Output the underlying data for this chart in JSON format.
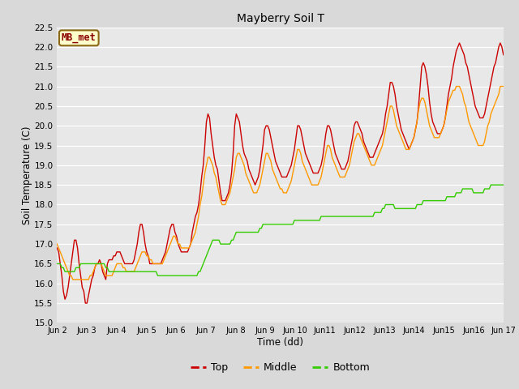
{
  "title": "Mayberry Soil T",
  "xlabel": "Time (dd)",
  "ylabel": "Soil Temperature (C)",
  "ylim": [
    15.0,
    22.5
  ],
  "annotation_label": "MB_met",
  "colors": {
    "top": "#cc0000",
    "middle": "#ff9900",
    "bottom": "#33cc00"
  },
  "fig_bg_color": "#d9d9d9",
  "plot_bg_color": "#e8e8e8",
  "yticks": [
    15.0,
    15.5,
    16.0,
    16.5,
    17.0,
    17.5,
    18.0,
    18.5,
    19.0,
    19.5,
    20.0,
    20.5,
    21.0,
    21.5,
    22.0,
    22.5
  ],
  "xtick_labels": [
    "Jun 2",
    "Jun 3",
    "Jun 4",
    "Jun 5",
    "Jun 6",
    "Jun 7",
    "Jun 8",
    "Jun 9",
    "Jun 10",
    "Jun11",
    "Jun12",
    "Jun13",
    "Jun14",
    "Jun15",
    "Jun16",
    "Jun 17"
  ],
  "top_data": [
    16.9,
    16.8,
    16.5,
    16.2,
    15.8,
    15.6,
    15.7,
    15.9,
    16.2,
    16.5,
    16.8,
    17.1,
    17.1,
    16.9,
    16.5,
    16.2,
    15.9,
    15.8,
    15.5,
    15.5,
    15.7,
    15.9,
    16.1,
    16.2,
    16.4,
    16.5,
    16.5,
    16.6,
    16.5,
    16.3,
    16.2,
    16.1,
    16.5,
    16.6,
    16.6,
    16.6,
    16.7,
    16.7,
    16.8,
    16.8,
    16.8,
    16.7,
    16.6,
    16.5,
    16.5,
    16.5,
    16.5,
    16.5,
    16.5,
    16.6,
    16.8,
    17.0,
    17.3,
    17.5,
    17.5,
    17.3,
    17.0,
    16.8,
    16.7,
    16.5,
    16.5,
    16.5,
    16.5,
    16.5,
    16.5,
    16.5,
    16.5,
    16.6,
    16.7,
    16.8,
    17.0,
    17.2,
    17.4,
    17.5,
    17.5,
    17.3,
    17.2,
    17.0,
    16.9,
    16.8,
    16.8,
    16.8,
    16.8,
    16.8,
    16.9,
    17.0,
    17.3,
    17.5,
    17.7,
    17.8,
    18.0,
    18.3,
    18.7,
    19.0,
    19.5,
    20.1,
    20.3,
    20.2,
    19.8,
    19.5,
    19.2,
    19.0,
    18.9,
    18.6,
    18.3,
    18.1,
    18.1,
    18.1,
    18.2,
    18.3,
    18.5,
    18.8,
    19.3,
    20.0,
    20.3,
    20.2,
    20.1,
    19.8,
    19.5,
    19.3,
    19.2,
    19.1,
    18.9,
    18.8,
    18.7,
    18.6,
    18.5,
    18.6,
    18.7,
    18.9,
    19.2,
    19.5,
    19.9,
    20.0,
    20.0,
    19.9,
    19.7,
    19.5,
    19.3,
    19.1,
    19.0,
    18.9,
    18.8,
    18.7,
    18.7,
    18.7,
    18.7,
    18.8,
    18.9,
    19.0,
    19.2,
    19.4,
    19.7,
    20.0,
    20.0,
    19.9,
    19.7,
    19.5,
    19.3,
    19.2,
    19.1,
    19.0,
    18.9,
    18.8,
    18.8,
    18.8,
    18.8,
    18.9,
    19.0,
    19.2,
    19.5,
    19.8,
    20.0,
    20.0,
    19.9,
    19.7,
    19.5,
    19.3,
    19.2,
    19.1,
    19.0,
    18.9,
    18.9,
    18.9,
    19.0,
    19.1,
    19.3,
    19.5,
    19.7,
    20.0,
    20.1,
    20.1,
    20.0,
    19.9,
    19.8,
    19.6,
    19.5,
    19.4,
    19.3,
    19.2,
    19.2,
    19.2,
    19.3,
    19.4,
    19.5,
    19.6,
    19.7,
    19.8,
    20.0,
    20.3,
    20.5,
    20.8,
    21.1,
    21.1,
    21.0,
    20.8,
    20.5,
    20.3,
    20.1,
    19.9,
    19.8,
    19.7,
    19.6,
    19.5,
    19.4,
    19.5,
    19.6,
    19.7,
    19.9,
    20.1,
    20.5,
    21.0,
    21.5,
    21.6,
    21.5,
    21.3,
    21.0,
    20.6,
    20.3,
    20.1,
    20.0,
    19.9,
    19.8,
    19.8,
    19.8,
    19.9,
    20.0,
    20.2,
    20.5,
    20.8,
    21.0,
    21.2,
    21.5,
    21.7,
    21.9,
    22.0,
    22.1,
    22.0,
    21.9,
    21.8,
    21.6,
    21.5,
    21.3,
    21.1,
    20.9,
    20.7,
    20.5,
    20.4,
    20.3,
    20.2,
    20.2,
    20.2,
    20.3,
    20.5,
    20.7,
    20.9,
    21.1,
    21.3,
    21.5,
    21.6,
    21.8,
    22.0,
    22.1,
    22.0,
    21.8
  ],
  "middle_data": [
    17.0,
    16.9,
    16.8,
    16.7,
    16.6,
    16.5,
    16.4,
    16.3,
    16.2,
    16.2,
    16.1,
    16.1,
    16.1,
    16.1,
    16.1,
    16.1,
    16.1,
    16.1,
    16.1,
    16.1,
    16.1,
    16.2,
    16.2,
    16.3,
    16.4,
    16.5,
    16.5,
    16.5,
    16.5,
    16.4,
    16.3,
    16.2,
    16.2,
    16.2,
    16.2,
    16.2,
    16.3,
    16.4,
    16.5,
    16.5,
    16.5,
    16.5,
    16.4,
    16.4,
    16.3,
    16.3,
    16.3,
    16.3,
    16.3,
    16.3,
    16.4,
    16.5,
    16.6,
    16.7,
    16.8,
    16.8,
    16.8,
    16.7,
    16.7,
    16.6,
    16.6,
    16.5,
    16.5,
    16.5,
    16.5,
    16.5,
    16.5,
    16.5,
    16.6,
    16.7,
    16.8,
    16.9,
    17.0,
    17.1,
    17.2,
    17.2,
    17.1,
    17.0,
    17.0,
    16.9,
    16.9,
    16.9,
    16.9,
    16.9,
    16.9,
    17.0,
    17.1,
    17.2,
    17.3,
    17.5,
    17.7,
    18.0,
    18.2,
    18.5,
    18.8,
    19.0,
    19.2,
    19.2,
    19.1,
    19.0,
    18.8,
    18.7,
    18.5,
    18.3,
    18.1,
    18.0,
    18.0,
    18.0,
    18.1,
    18.2,
    18.3,
    18.5,
    18.7,
    18.9,
    19.2,
    19.3,
    19.3,
    19.2,
    19.1,
    19.0,
    18.8,
    18.7,
    18.6,
    18.5,
    18.4,
    18.3,
    18.3,
    18.3,
    18.4,
    18.5,
    18.7,
    18.9,
    19.1,
    19.3,
    19.3,
    19.2,
    19.1,
    18.9,
    18.8,
    18.7,
    18.6,
    18.5,
    18.4,
    18.4,
    18.3,
    18.3,
    18.3,
    18.4,
    18.5,
    18.6,
    18.8,
    19.0,
    19.2,
    19.4,
    19.4,
    19.3,
    19.1,
    19.0,
    18.9,
    18.8,
    18.7,
    18.6,
    18.5,
    18.5,
    18.5,
    18.5,
    18.5,
    18.6,
    18.7,
    18.9,
    19.1,
    19.3,
    19.5,
    19.5,
    19.4,
    19.2,
    19.1,
    19.0,
    18.9,
    18.8,
    18.7,
    18.7,
    18.7,
    18.7,
    18.8,
    18.9,
    19.0,
    19.2,
    19.4,
    19.6,
    19.7,
    19.8,
    19.8,
    19.7,
    19.6,
    19.5,
    19.4,
    19.3,
    19.2,
    19.1,
    19.0,
    19.0,
    19.0,
    19.1,
    19.2,
    19.3,
    19.4,
    19.5,
    19.7,
    19.9,
    20.1,
    20.3,
    20.5,
    20.5,
    20.4,
    20.2,
    20.0,
    19.9,
    19.8,
    19.7,
    19.6,
    19.5,
    19.4,
    19.4,
    19.4,
    19.5,
    19.6,
    19.7,
    19.9,
    20.1,
    20.4,
    20.6,
    20.7,
    20.7,
    20.6,
    20.4,
    20.2,
    20.0,
    19.9,
    19.8,
    19.7,
    19.7,
    19.7,
    19.7,
    19.8,
    19.9,
    20.0,
    20.2,
    20.4,
    20.6,
    20.7,
    20.8,
    20.9,
    20.9,
    21.0,
    21.0,
    21.0,
    20.9,
    20.8,
    20.6,
    20.5,
    20.3,
    20.1,
    20.0,
    19.9,
    19.8,
    19.7,
    19.6,
    19.5,
    19.5,
    19.5,
    19.5,
    19.6,
    19.8,
    20.0,
    20.1,
    20.3,
    20.4,
    20.5,
    20.6,
    20.7,
    20.8,
    21.0,
    21.0,
    21.0
  ],
  "bottom_data": [
    16.5,
    16.5,
    16.5,
    16.4,
    16.4,
    16.3,
    16.3,
    16.3,
    16.3,
    16.3,
    16.3,
    16.3,
    16.4,
    16.4,
    16.4,
    16.5,
    16.5,
    16.5,
    16.5,
    16.5,
    16.5,
    16.5,
    16.5,
    16.5,
    16.5,
    16.5,
    16.5,
    16.5,
    16.5,
    16.5,
    16.5,
    16.4,
    16.4,
    16.3,
    16.3,
    16.3,
    16.3,
    16.3,
    16.3,
    16.3,
    16.3,
    16.3,
    16.3,
    16.3,
    16.3,
    16.3,
    16.3,
    16.3,
    16.3,
    16.3,
    16.3,
    16.3,
    16.3,
    16.3,
    16.3,
    16.3,
    16.3,
    16.3,
    16.3,
    16.3,
    16.3,
    16.3,
    16.3,
    16.3,
    16.2,
    16.2,
    16.2,
    16.2,
    16.2,
    16.2,
    16.2,
    16.2,
    16.2,
    16.2,
    16.2,
    16.2,
    16.2,
    16.2,
    16.2,
    16.2,
    16.2,
    16.2,
    16.2,
    16.2,
    16.2,
    16.2,
    16.2,
    16.2,
    16.2,
    16.2,
    16.3,
    16.3,
    16.4,
    16.5,
    16.6,
    16.7,
    16.8,
    16.9,
    17.0,
    17.1,
    17.1,
    17.1,
    17.1,
    17.1,
    17.0,
    17.0,
    17.0,
    17.0,
    17.0,
    17.0,
    17.0,
    17.1,
    17.1,
    17.2,
    17.3,
    17.3,
    17.3,
    17.3,
    17.3,
    17.3,
    17.3,
    17.3,
    17.3,
    17.3,
    17.3,
    17.3,
    17.3,
    17.3,
    17.3,
    17.4,
    17.4,
    17.5,
    17.5,
    17.5,
    17.5,
    17.5,
    17.5,
    17.5,
    17.5,
    17.5,
    17.5,
    17.5,
    17.5,
    17.5,
    17.5,
    17.5,
    17.5,
    17.5,
    17.5,
    17.5,
    17.5,
    17.6,
    17.6,
    17.6,
    17.6,
    17.6,
    17.6,
    17.6,
    17.6,
    17.6,
    17.6,
    17.6,
    17.6,
    17.6,
    17.6,
    17.6,
    17.6,
    17.6,
    17.7,
    17.7,
    17.7,
    17.7,
    17.7,
    17.7,
    17.7,
    17.7,
    17.7,
    17.7,
    17.7,
    17.7,
    17.7,
    17.7,
    17.7,
    17.7,
    17.7,
    17.7,
    17.7,
    17.7,
    17.7,
    17.7,
    17.7,
    17.7,
    17.7,
    17.7,
    17.7,
    17.7,
    17.7,
    17.7,
    17.7,
    17.7,
    17.7,
    17.7,
    17.8,
    17.8,
    17.8,
    17.8,
    17.8,
    17.9,
    17.9,
    18.0,
    18.0,
    18.0,
    18.0,
    18.0,
    18.0,
    17.9,
    17.9,
    17.9,
    17.9,
    17.9,
    17.9,
    17.9,
    17.9,
    17.9,
    17.9,
    17.9,
    17.9,
    17.9,
    17.9,
    18.0,
    18.0,
    18.0,
    18.0,
    18.1,
    18.1,
    18.1,
    18.1,
    18.1,
    18.1,
    18.1,
    18.1,
    18.1,
    18.1,
    18.1,
    18.1,
    18.1,
    18.1,
    18.1,
    18.2,
    18.2,
    18.2,
    18.2,
    18.2,
    18.2,
    18.3,
    18.3,
    18.3,
    18.3,
    18.4,
    18.4,
    18.4,
    18.4,
    18.4,
    18.4,
    18.4,
    18.3,
    18.3,
    18.3,
    18.3,
    18.3,
    18.3,
    18.3,
    18.4,
    18.4,
    18.4,
    18.4,
    18.5,
    18.5,
    18.5,
    18.5,
    18.5,
    18.5,
    18.5,
    18.5,
    18.5
  ]
}
